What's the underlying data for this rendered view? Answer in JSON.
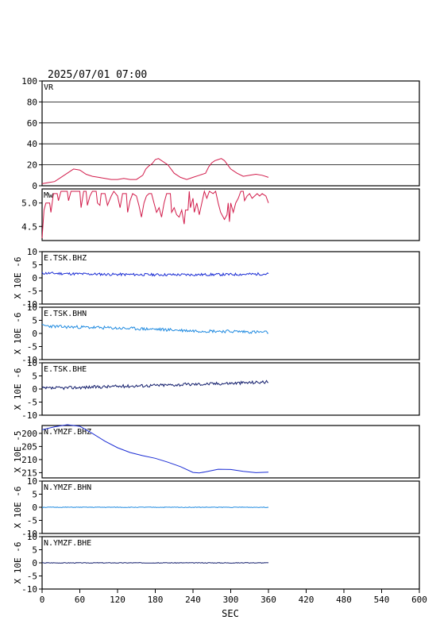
{
  "header": {
    "timestamp": "2025/07/01 07:00"
  },
  "chart_data": {
    "type": "line",
    "x_axis": {
      "label": "SEC",
      "ticks": [
        "0",
        "60",
        "120",
        "180",
        "240",
        "300",
        "360",
        "420",
        "480",
        "540",
        "600"
      ],
      "range": [
        0,
        600
      ]
    },
    "panels": [
      {
        "id": "vr",
        "label": "VR",
        "color": "#d21c4b",
        "ylim": [
          0,
          100
        ],
        "ytick_labels": [
          "100",
          "80",
          "60",
          "40",
          "20",
          "0"
        ],
        "ytick_values": [
          100,
          80,
          60,
          40,
          20,
          0
        ],
        "grid": true,
        "ylabel": "",
        "series": [
          [
            0,
            2
          ],
          [
            10,
            3
          ],
          [
            20,
            4
          ],
          [
            30,
            8
          ],
          [
            40,
            12
          ],
          [
            50,
            16
          ],
          [
            60,
            15
          ],
          [
            70,
            11
          ],
          [
            80,
            9
          ],
          [
            90,
            8
          ],
          [
            100,
            7
          ],
          [
            110,
            6
          ],
          [
            120,
            6
          ],
          [
            130,
            7
          ],
          [
            140,
            6
          ],
          [
            150,
            6
          ],
          [
            160,
            10
          ],
          [
            165,
            16
          ],
          [
            170,
            19
          ],
          [
            175,
            21
          ],
          [
            180,
            25
          ],
          [
            185,
            26
          ],
          [
            190,
            24
          ],
          [
            200,
            20
          ],
          [
            210,
            12
          ],
          [
            220,
            8
          ],
          [
            230,
            6
          ],
          [
            240,
            8
          ],
          [
            250,
            10
          ],
          [
            260,
            12
          ],
          [
            265,
            18
          ],
          [
            270,
            22
          ],
          [
            275,
            24
          ],
          [
            280,
            25
          ],
          [
            285,
            26
          ],
          [
            290,
            24
          ],
          [
            300,
            16
          ],
          [
            310,
            12
          ],
          [
            320,
            9
          ],
          [
            330,
            10
          ],
          [
            340,
            11
          ],
          [
            350,
            10
          ],
          [
            360,
            8
          ]
        ]
      },
      {
        "id": "mw",
        "label": "Mw",
        "color": "#d21c4b",
        "ylim": [
          4.2,
          5.3
        ],
        "ytick_labels": [
          "5.0",
          "4.5"
        ],
        "ytick_values": [
          5.0,
          4.5
        ],
        "grid": false,
        "ylabel": "",
        "series": [
          [
            0,
            4.25
          ],
          [
            3,
            4.85
          ],
          [
            6,
            5.0
          ],
          [
            12,
            5.0
          ],
          [
            14,
            4.8
          ],
          [
            18,
            5.2
          ],
          [
            24,
            5.2
          ],
          [
            26,
            5.05
          ],
          [
            30,
            5.25
          ],
          [
            40,
            5.25
          ],
          [
            42,
            5.05
          ],
          [
            46,
            5.25
          ],
          [
            60,
            5.25
          ],
          [
            62,
            4.9
          ],
          [
            66,
            5.25
          ],
          [
            70,
            5.25
          ],
          [
            72,
            4.95
          ],
          [
            76,
            5.15
          ],
          [
            80,
            5.25
          ],
          [
            86,
            5.25
          ],
          [
            88,
            5.0
          ],
          [
            92,
            4.95
          ],
          [
            94,
            5.2
          ],
          [
            100,
            5.2
          ],
          [
            104,
            4.95
          ],
          [
            110,
            5.15
          ],
          [
            114,
            5.25
          ],
          [
            120,
            5.15
          ],
          [
            124,
            4.9
          ],
          [
            128,
            5.2
          ],
          [
            134,
            5.2
          ],
          [
            136,
            4.8
          ],
          [
            140,
            5.05
          ],
          [
            144,
            5.2
          ],
          [
            150,
            5.15
          ],
          [
            154,
            4.95
          ],
          [
            158,
            4.7
          ],
          [
            162,
            5.0
          ],
          [
            166,
            5.15
          ],
          [
            170,
            5.2
          ],
          [
            174,
            5.2
          ],
          [
            178,
            5.0
          ],
          [
            182,
            4.8
          ],
          [
            186,
            4.9
          ],
          [
            190,
            4.7
          ],
          [
            194,
            5.0
          ],
          [
            198,
            5.2
          ],
          [
            204,
            5.2
          ],
          [
            206,
            4.8
          ],
          [
            210,
            4.9
          ],
          [
            214,
            4.75
          ],
          [
            218,
            4.7
          ],
          [
            222,
            4.85
          ],
          [
            226,
            4.55
          ],
          [
            228,
            4.85
          ],
          [
            232,
            4.85
          ],
          [
            234,
            5.25
          ],
          [
            236,
            4.9
          ],
          [
            240,
            5.1
          ],
          [
            242,
            4.8
          ],
          [
            246,
            5.0
          ],
          [
            250,
            4.75
          ],
          [
            254,
            5.0
          ],
          [
            258,
            5.25
          ],
          [
            262,
            5.1
          ],
          [
            266,
            5.25
          ],
          [
            272,
            5.2
          ],
          [
            276,
            5.25
          ],
          [
            280,
            5.0
          ],
          [
            284,
            4.8
          ],
          [
            290,
            4.65
          ],
          [
            294,
            4.75
          ],
          [
            296,
            5.0
          ],
          [
            298,
            4.6
          ],
          [
            300,
            5.0
          ],
          [
            304,
            4.8
          ],
          [
            308,
            5.0
          ],
          [
            312,
            5.1
          ],
          [
            316,
            5.25
          ],
          [
            320,
            5.25
          ],
          [
            322,
            5.05
          ],
          [
            326,
            5.15
          ],
          [
            330,
            5.2
          ],
          [
            334,
            5.1
          ],
          [
            338,
            5.15
          ],
          [
            342,
            5.2
          ],
          [
            346,
            5.15
          ],
          [
            350,
            5.2
          ],
          [
            356,
            5.15
          ],
          [
            360,
            5.0
          ]
        ]
      },
      {
        "id": "e-tsk-bhz",
        "label": "E.TSK.BHZ",
        "color": "#1a2cd4",
        "ylim": [
          -10,
          10
        ],
        "ytick_labels": [
          "10",
          "5",
          "0",
          "-5",
          "-10"
        ],
        "ytick_values": [
          10,
          5,
          0,
          -5,
          -10
        ],
        "grid": false,
        "ylabel": "X 10E -6",
        "trend": [
          [
            0,
            1.8
          ],
          [
            60,
            1.5
          ],
          [
            120,
            1.3
          ],
          [
            180,
            1.2
          ],
          [
            240,
            1.2
          ],
          [
            300,
            1.3
          ],
          [
            360,
            1.5
          ]
        ],
        "noise_amp": 0.5,
        "seed": 11
      },
      {
        "id": "e-tsk-bhn",
        "label": "E.TSK.BHN",
        "color": "#1f8ae0",
        "ylim": [
          -10,
          10
        ],
        "ytick_labels": [
          "10",
          "5",
          "0",
          "-5",
          "-10"
        ],
        "ytick_values": [
          10,
          5,
          0,
          -5,
          -10
        ],
        "grid": false,
        "ylabel": "X 10E -6",
        "trend": [
          [
            0,
            3.0
          ],
          [
            30,
            2.5
          ],
          [
            60,
            2.4
          ],
          [
            120,
            2.0
          ],
          [
            180,
            1.6
          ],
          [
            240,
            1.0
          ],
          [
            300,
            0.8
          ],
          [
            360,
            0.4
          ]
        ],
        "noise_amp": 0.6,
        "seed": 23
      },
      {
        "id": "e-tsk-bhe",
        "label": "E.TSK.BHE",
        "color": "#111c6b",
        "ylim": [
          -10,
          10
        ],
        "ytick_labels": [
          "10",
          "5",
          "0",
          "-5",
          "-10"
        ],
        "ytick_values": [
          10,
          5,
          0,
          -5,
          -10
        ],
        "grid": false,
        "ylabel": "X 10E -6",
        "trend": [
          [
            0,
            0.2
          ],
          [
            60,
            0.6
          ],
          [
            120,
            1.0
          ],
          [
            180,
            1.4
          ],
          [
            240,
            1.8
          ],
          [
            300,
            2.2
          ],
          [
            360,
            2.7
          ]
        ],
        "noise_amp": 0.6,
        "seed": 37
      },
      {
        "id": "n-ymzf-bhz",
        "label": "N.YMZF.BHZ",
        "color": "#1a2cd4",
        "ylim": [
          -217,
          -197
        ],
        "ytick_labels": [
          "200",
          "205",
          "210",
          "215"
        ],
        "ytick_values": [
          -200,
          -205,
          -210,
          -215
        ],
        "grid": false,
        "ylabel": "X 10E -5",
        "series": [
          [
            0,
            -198.6
          ],
          [
            20,
            -197.5
          ],
          [
            40,
            -196.7
          ],
          [
            60,
            -197.3
          ],
          [
            80,
            -200
          ],
          [
            100,
            -203
          ],
          [
            120,
            -205.5
          ],
          [
            140,
            -207.3
          ],
          [
            160,
            -208.5
          ],
          [
            180,
            -209.5
          ],
          [
            200,
            -211
          ],
          [
            220,
            -212.7
          ],
          [
            240,
            -214.9
          ],
          [
            250,
            -215.1
          ],
          [
            260,
            -214.7
          ],
          [
            280,
            -213.7
          ],
          [
            300,
            -213.8
          ],
          [
            320,
            -214.5
          ],
          [
            340,
            -215
          ],
          [
            360,
            -214.8
          ]
        ]
      },
      {
        "id": "n-ymzf-bhn",
        "label": "N.YMZF.BHN",
        "color": "#1f8ae0",
        "ylim": [
          -10,
          10
        ],
        "ytick_labels": [
          "10",
          "5",
          "0",
          "-5",
          "-10"
        ],
        "ytick_values": [
          10,
          5,
          0,
          -5,
          -10
        ],
        "grid": false,
        "ylabel": "X 10E -6",
        "trend": [
          [
            0,
            0
          ],
          [
            360,
            0
          ]
        ],
        "noise_amp": 0.12,
        "seed": 51
      },
      {
        "id": "n-ymzf-bhe",
        "label": "N.YMZF.BHE",
        "color": "#111c6b",
        "ylim": [
          -10,
          10
        ],
        "ytick_labels": [
          "10",
          "5",
          "0",
          "-5",
          "-10"
        ],
        "ytick_values": [
          10,
          5,
          0,
          -5,
          -10
        ],
        "grid": false,
        "ylabel": "X 10E -6",
        "trend": [
          [
            0,
            0
          ],
          [
            360,
            0
          ]
        ],
        "noise_amp": 0.12,
        "seed": 67
      }
    ]
  }
}
